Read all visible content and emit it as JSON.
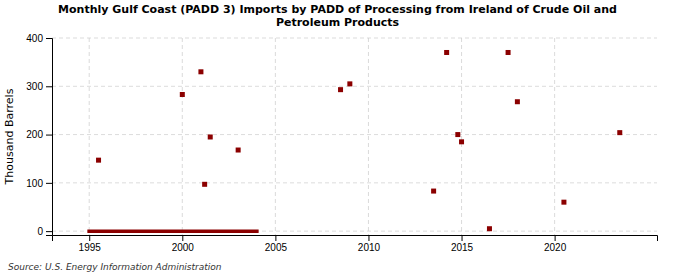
{
  "chart_data": {
    "type": "scatter",
    "title": "Monthly Gulf Coast (PADD 3) Imports by PADD of Processing from Ireland of Crude Oil and\nPetroleum Products",
    "ylabel": "Thousand Barrels",
    "source": "Source: U.S. Energy Information Administration",
    "series": [
      {
        "type": "line",
        "color": "#8b0000",
        "x": [
          1994.9,
          2004.1
        ],
        "values": [
          0,
          0
        ]
      },
      {
        "type": "scatter",
        "color": "#8b0000",
        "marker": "square",
        "x": [
          1995.5,
          2000.0,
          2001.0,
          2001.5,
          2003.0,
          2001.2,
          2008.5,
          2009.0,
          2013.5,
          2014.2,
          2014.8,
          2015.0,
          2016.5,
          2017.5,
          2018.0,
          2020.5,
          2023.5
        ],
        "values": [
          147,
          283,
          330,
          195,
          168,
          97,
          293,
          305,
          83,
          370,
          200,
          185,
          5,
          370,
          268,
          60,
          204
        ]
      }
    ],
    "xlim": [
      1993.0,
      2025.5
    ],
    "ylim": [
      -8,
      400
    ],
    "xticks": [
      1995,
      2000,
      2005,
      2010,
      2015,
      2020
    ],
    "yticks": [
      0,
      100,
      200,
      300,
      400
    ],
    "grid": true
  }
}
